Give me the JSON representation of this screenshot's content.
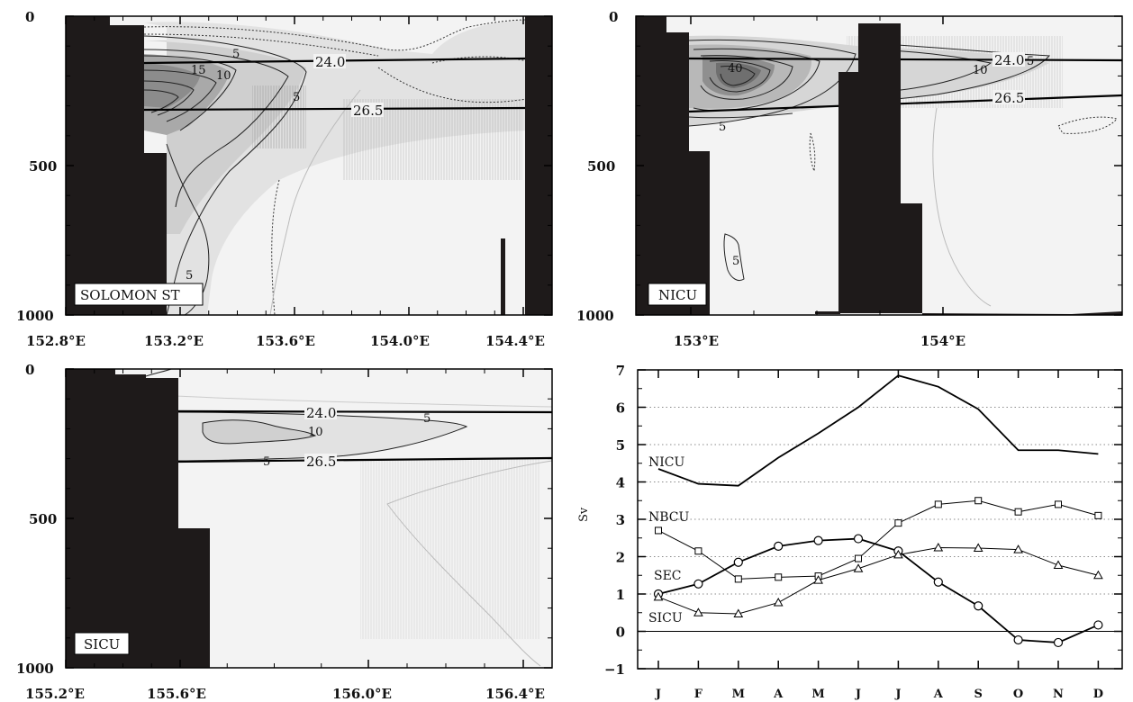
{
  "panels": {
    "solomon": {
      "label": "SOLOMON ST",
      "x_ticks": [
        "152.8°E",
        "153.2°E",
        "153.6°E",
        "154.0°E",
        "154.4°E"
      ],
      "y_ticks": [
        "0",
        "500",
        "1000"
      ],
      "isopycnals": [
        "24.0",
        "26.5"
      ],
      "contour_labels": [
        "5",
        "15",
        "10",
        "5",
        "5"
      ]
    },
    "nicu": {
      "label": "NICU",
      "x_ticks": [
        "153°E",
        "154°E"
      ],
      "y_ticks": [
        "0",
        "500",
        "1000"
      ],
      "isopycnals": [
        "24.0",
        "26.5"
      ],
      "contour_labels": [
        "40",
        "10",
        "5",
        "5",
        "5"
      ]
    },
    "sicu": {
      "label": "SICU",
      "x_ticks": [
        "155.2°E",
        "155.6°E",
        "156.0°E",
        "156.4°E"
      ],
      "y_ticks": [
        "0",
        "500",
        "1000"
      ],
      "isopycnals": [
        "24.0",
        "26.5"
      ],
      "contour_labels": [
        "10",
        "5",
        "5"
      ]
    }
  },
  "chart_data": [
    {
      "type": "heatmap",
      "title": "",
      "panel_label": "SOLOMON ST",
      "xlabel": "",
      "ylabel": "",
      "xlim": [
        "152.8°E",
        "154.5°E"
      ],
      "ylim": [
        1000,
        0
      ],
      "x_ticks": [
        "152.8°E",
        "153.2°E",
        "153.6°E",
        "154.0°E",
        "154.4°E"
      ],
      "y_ticks": [
        0,
        500,
        1000
      ],
      "isopycnal_labels": [
        "24.0",
        "26.5"
      ],
      "contour_values": [
        5,
        10,
        15
      ]
    },
    {
      "type": "heatmap",
      "title": "",
      "panel_label": "NICU",
      "xlabel": "",
      "ylabel": "",
      "x_ticks": [
        "153°E",
        "154°E"
      ],
      "y_ticks": [
        0,
        500,
        1000
      ],
      "isopycnal_labels": [
        "24.0",
        "26.5"
      ],
      "contour_values": [
        5,
        10,
        40
      ]
    },
    {
      "type": "heatmap",
      "title": "",
      "panel_label": "SICU",
      "xlabel": "",
      "ylabel": "",
      "x_ticks": [
        "155.2°E",
        "155.6°E",
        "156.0°E",
        "156.4°E"
      ],
      "y_ticks": [
        0,
        500,
        1000
      ],
      "isopycnal_labels": [
        "24.0",
        "26.5"
      ],
      "contour_values": [
        5,
        10
      ]
    },
    {
      "type": "line",
      "title": "",
      "xlabel": "",
      "ylabel": "Sv",
      "categories": [
        "J",
        "F",
        "M",
        "A",
        "M",
        "J",
        "J",
        "A",
        "S",
        "O",
        "N",
        "D"
      ],
      "ylim": [
        -1,
        7
      ],
      "y_ticks": [
        "7",
        "6",
        "5",
        "4",
        "3",
        "2",
        "1",
        "0",
        "−1"
      ],
      "grid": "horizontal dotted",
      "series": [
        {
          "name": "NICU",
          "marker": "none",
          "values": [
            4.35,
            3.95,
            3.9,
            4.65,
            5.3,
            6.0,
            6.85,
            6.55,
            5.95,
            4.85,
            4.85,
            4.75
          ]
        },
        {
          "name": "NBCU",
          "marker": "square",
          "values": [
            2.7,
            2.15,
            1.4,
            1.45,
            1.48,
            1.95,
            2.9,
            3.4,
            3.5,
            3.2,
            3.4,
            3.1
          ]
        },
        {
          "name": "SEC",
          "marker": "circle",
          "values": [
            1.0,
            1.27,
            1.85,
            2.28,
            2.43,
            2.48,
            2.15,
            1.32,
            0.68,
            -0.23,
            -0.3,
            0.17
          ]
        },
        {
          "name": "SICU",
          "marker": "triangle",
          "values": [
            0.92,
            0.5,
            0.47,
            0.77,
            1.37,
            1.68,
            2.05,
            2.24,
            2.23,
            2.19,
            1.77,
            1.5
          ]
        }
      ]
    }
  ]
}
